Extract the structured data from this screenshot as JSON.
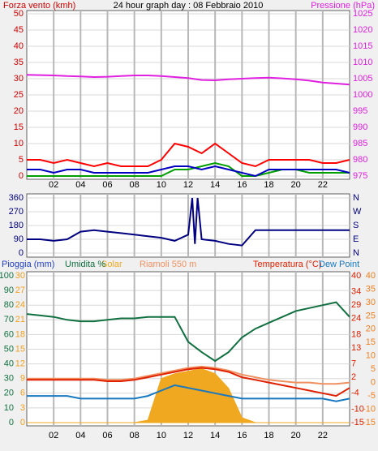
{
  "chart_data": [
    {
      "type": "line",
      "title": "24 hour graph day : 08 Febbraio 2010",
      "y_label": "Forza vento (kmh)",
      "y_label_color": "#d00000",
      "y2_label": "Pressione (hPa)",
      "y2_label_color": "#e020e0",
      "x": [
        0,
        1,
        2,
        3,
        4,
        5,
        6,
        7,
        8,
        9,
        10,
        11,
        12,
        13,
        14,
        15,
        16,
        17,
        18,
        19,
        20,
        21,
        22,
        23,
        24
      ],
      "xlim": [
        0,
        24
      ],
      "xticks": [
        {
          "value": 2,
          "label": "02"
        },
        {
          "value": 4,
          "label": "04"
        },
        {
          "value": 6,
          "label": "06"
        },
        {
          "value": 8,
          "label": "08"
        },
        10,
        12,
        14,
        16,
        18,
        20,
        22
      ],
      "ylim": [
        0,
        50
      ],
      "yticks": [
        0,
        5,
        10,
        15,
        20,
        25,
        30,
        35,
        40,
        45,
        50
      ],
      "ytick_color": "#d00000",
      "y2lim": [
        975,
        1025
      ],
      "y2ticks": [
        975,
        980,
        985,
        990,
        995,
        1000,
        1005,
        1010,
        1015,
        1020,
        1025
      ],
      "y2tick_color": "#e020e0",
      "grid": true,
      "series": [
        {
          "color": "#e020e0",
          "axis": "y2",
          "values": [
            1006.2,
            1006.1,
            1006,
            1005.8,
            1005.7,
            1005.5,
            1005.6,
            1005.8,
            1006,
            1006,
            1005.8,
            1005.5,
            1005.2,
            1004.6,
            1004.5,
            1004.8,
            1005,
            1005.2,
            1005.3,
            1005.1,
            1004.8,
            1004.4,
            1003.8,
            1003.5,
            1003.2
          ]
        },
        {
          "color": "#ff0000",
          "values": [
            5,
            5,
            4,
            5,
            4,
            3,
            4,
            3,
            3,
            3,
            5,
            10,
            9,
            7,
            10,
            7,
            4,
            3,
            5,
            5,
            5,
            5,
            4,
            4,
            5
          ]
        },
        {
          "color": "#00a000",
          "values": [
            0,
            0,
            0,
            0,
            0,
            0,
            0,
            0,
            0,
            0,
            0,
            2,
            2,
            3,
            4,
            3,
            0,
            0,
            1,
            2,
            2,
            1,
            1,
            1,
            1
          ]
        },
        {
          "color": "#0000c0",
          "values": [
            2,
            2,
            1,
            2,
            2,
            1,
            1,
            1,
            1,
            1,
            2,
            3,
            3,
            2,
            3,
            2,
            1,
            0,
            2,
            2,
            2,
            2,
            2,
            2,
            1
          ]
        }
      ]
    },
    {
      "type": "line",
      "x": [
        0,
        1,
        2,
        3,
        4,
        5,
        6,
        7,
        8,
        9,
        10,
        11,
        12,
        12.3,
        12.5,
        12.7,
        13,
        14,
        15,
        16,
        17,
        18,
        19,
        20,
        21,
        22,
        23,
        24
      ],
      "xlim": [
        0,
        24
      ],
      "xticks": [
        {
          "value": 2,
          "label": "02"
        },
        {
          "value": 4,
          "label": "04"
        },
        {
          "value": 6,
          "label": "06"
        },
        {
          "value": 8,
          "label": "08"
        },
        10,
        12,
        14,
        16,
        18,
        20,
        22
      ],
      "ylim": [
        0,
        360
      ],
      "yticks": [
        0,
        90,
        180,
        270,
        360
      ],
      "ytick_color": "#000080",
      "y2ticks": [
        {
          "value": 0,
          "label": "N"
        },
        {
          "value": 90,
          "label": "E"
        },
        {
          "value": 180,
          "label": "S"
        },
        {
          "value": 270,
          "label": "W"
        },
        {
          "value": 360,
          "label": "N"
        }
      ],
      "y2tick_color": "#000080",
      "grid": true,
      "series": [
        {
          "color": "#000080",
          "values": [
            90,
            90,
            80,
            90,
            140,
            150,
            140,
            130,
            120,
            110,
            100,
            80,
            120,
            360,
            60,
            360,
            90,
            80,
            60,
            50,
            150,
            150,
            150,
            150,
            150,
            150,
            150,
            150
          ]
        }
      ]
    },
    {
      "type": "line",
      "y_label": "Pioggia (mm)",
      "y_label_color": "#2040c0",
      "x": [
        0,
        1,
        2,
        3,
        4,
        5,
        6,
        7,
        8,
        9,
        10,
        11,
        12,
        13,
        14,
        15,
        16,
        17,
        18,
        19,
        20,
        21,
        22,
        23,
        24
      ],
      "xlim": [
        0,
        24
      ],
      "xticks": [
        {
          "value": 2,
          "label": "02"
        },
        {
          "value": 4,
          "label": "04"
        },
        {
          "value": 6,
          "label": "06"
        },
        {
          "value": 8,
          "label": "08"
        },
        10,
        12,
        14,
        16,
        18,
        20,
        22
      ],
      "ylim": [
        0,
        100
      ],
      "yticks": [
        0,
        10,
        20,
        30,
        40,
        50,
        60,
        70,
        80,
        90,
        100
      ],
      "ytick_color": "#107040",
      "y3lim": [
        0,
        30
      ],
      "y3ticks": [
        0,
        3,
        6,
        9,
        12,
        15,
        18,
        21,
        24,
        27,
        30
      ],
      "y3tick_color": "#f0a020",
      "y2lim": [
        -15,
        40
      ],
      "y2ticks": [
        -15,
        -10,
        -5,
        0,
        5,
        10,
        15,
        20,
        25,
        30,
        35,
        40
      ],
      "y2tick_color": "#f08020",
      "y4ticks": [
        -15,
        -10,
        -4,
        2,
        7,
        13,
        18,
        24,
        29,
        34,
        40
      ],
      "y4tick_color": "#e02000",
      "grid": true,
      "series": [
        {
          "name": "Solar",
          "color": "#f0a820",
          "axis": "y3",
          "fill": true,
          "values": [
            0,
            0,
            0,
            0,
            0,
            0,
            0,
            0,
            0,
            0.5,
            9,
            10,
            10.5,
            11,
            10,
            7,
            1,
            0,
            0,
            0,
            0,
            0,
            0,
            0,
            0
          ]
        },
        {
          "name": "Umidita %",
          "color": "#107040",
          "values": [
            74,
            73,
            72,
            70,
            69,
            69,
            70,
            71,
            71,
            72,
            72,
            72,
            55,
            48,
            42,
            48,
            58,
            64,
            68,
            72,
            76,
            78,
            80,
            82,
            72
          ]
        },
        {
          "name": "Riamoli 550 m",
          "color": "#f09060",
          "axis": "y2",
          "values": [
            1.5,
            1.5,
            1.5,
            1.5,
            1.5,
            1.5,
            1,
            1,
            1.5,
            2.5,
            3.5,
            4.5,
            5.5,
            6,
            5.5,
            4.5,
            3,
            2,
            1,
            0.5,
            0,
            0,
            -0.5,
            -0.5,
            0
          ]
        },
        {
          "name": "Temperatura (°C)",
          "color": "#e02000",
          "axis": "y2",
          "values": [
            1,
            1,
            1,
            1,
            1,
            1,
            0.5,
            0.5,
            1,
            2,
            3,
            4,
            5,
            5.5,
            5,
            4,
            2,
            1,
            0,
            -1,
            -2,
            -3,
            -4,
            -5,
            -2
          ]
        },
        {
          "name": "Dew Point",
          "color": "#1878c0",
          "axis": "y2",
          "values": [
            -5,
            -5,
            -5,
            -5,
            -6,
            -6,
            -6,
            -6,
            -6,
            -5,
            -3,
            -1,
            -2,
            -3,
            -4,
            -5,
            -6,
            -6,
            -6,
            -6,
            -6,
            -6,
            -6,
            -7,
            -6
          ]
        }
      ]
    }
  ]
}
